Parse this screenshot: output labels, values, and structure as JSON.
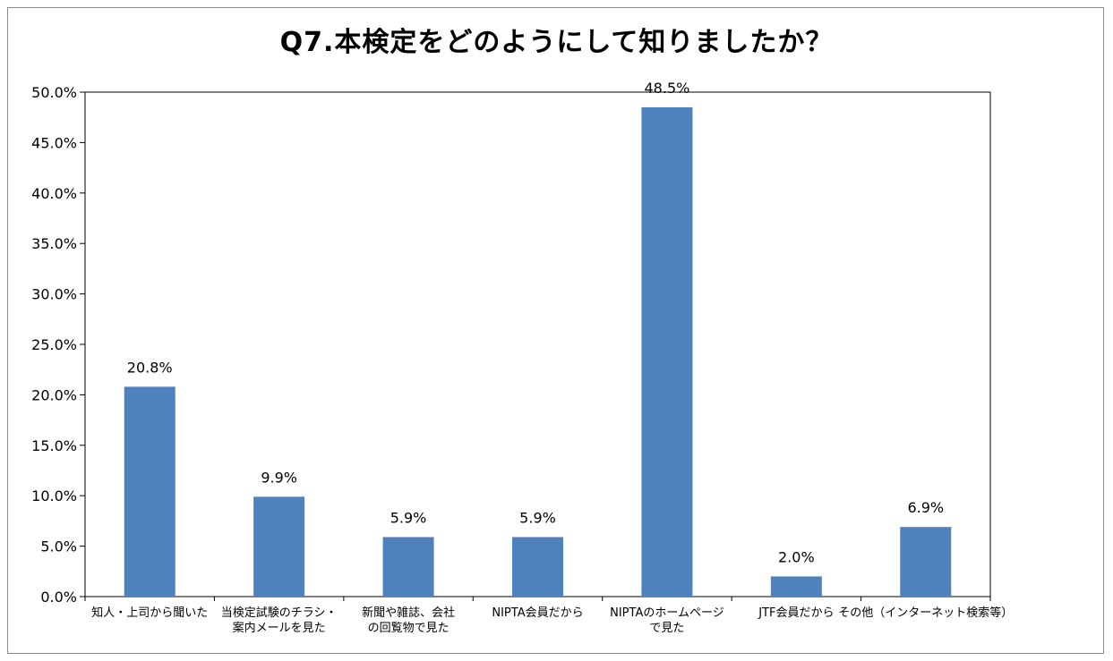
{
  "chart_data": {
    "type": "bar",
    "title": "Q7.本検定をどのようにして知りましたか？",
    "xlabel": "",
    "ylabel": "",
    "ylim": [
      0,
      50
    ],
    "yticks": [
      "0.0%",
      "5.0%",
      "10.0%",
      "15.0%",
      "20.0%",
      "25.0%",
      "30.0%",
      "35.0%",
      "40.0%",
      "45.0%",
      "50.0%"
    ],
    "grid": false,
    "legend": "none",
    "bar_color": "#4f81bd",
    "categories": [
      [
        "知人・上司から聞いた"
      ],
      [
        "当検定試験のチラシ・",
        "案内メールを見た"
      ],
      [
        "新聞や雑誌、会社",
        "の回覧物で見た"
      ],
      [
        "NIPTA会員だから"
      ],
      [
        "NIPTAのホームページ",
        "で見た"
      ],
      [
        "JTF会員だから"
      ],
      [
        "その他（インターネット検索等）"
      ]
    ],
    "values": [
      20.8,
      9.9,
      5.9,
      5.9,
      48.5,
      2.0,
      6.9
    ],
    "value_labels": [
      "20.8%",
      "9.9%",
      "5.9%",
      "5.9%",
      "48.5%",
      "2.0%",
      "6.9%"
    ]
  }
}
